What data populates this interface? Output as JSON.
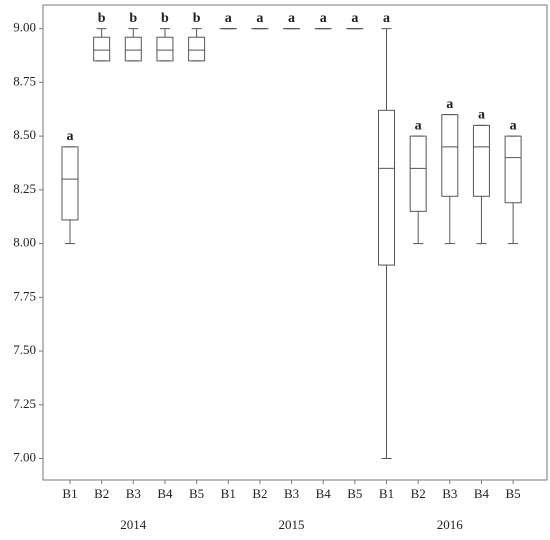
{
  "chart_data": {
    "type": "box",
    "categories": [
      "B1",
      "B2",
      "B3",
      "B4",
      "B5",
      "B1",
      "B2",
      "B3",
      "B4",
      "B5",
      "B1",
      "B2",
      "B3",
      "B4",
      "B5"
    ],
    "groups": [
      "2014",
      "2015",
      "2016"
    ],
    "boxes": [
      {
        "min": 8.0,
        "q1": 8.11,
        "median": 8.3,
        "q3": 8.45,
        "max": 8.45
      },
      {
        "min": 8.85,
        "q1": 8.85,
        "median": 8.9,
        "q3": 8.96,
        "max": 9.0
      },
      {
        "min": 8.85,
        "q1": 8.85,
        "median": 8.9,
        "q3": 8.96,
        "max": 9.0
      },
      {
        "min": 8.85,
        "q1": 8.85,
        "median": 8.9,
        "q3": 8.96,
        "max": 9.0
      },
      {
        "min": 8.85,
        "q1": 8.85,
        "median": 8.9,
        "q3": 8.96,
        "max": 9.0
      },
      {
        "min": 9.0,
        "q1": 9.0,
        "median": 9.0,
        "q3": 9.0,
        "max": 9.0
      },
      {
        "min": 9.0,
        "q1": 9.0,
        "median": 9.0,
        "q3": 9.0,
        "max": 9.0
      },
      {
        "min": 9.0,
        "q1": 9.0,
        "median": 9.0,
        "q3": 9.0,
        "max": 9.0
      },
      {
        "min": 9.0,
        "q1": 9.0,
        "median": 9.0,
        "q3": 9.0,
        "max": 9.0
      },
      {
        "min": 9.0,
        "q1": 9.0,
        "median": 9.0,
        "q3": 9.0,
        "max": 9.0
      },
      {
        "min": 7.0,
        "q1": 7.9,
        "median": 8.35,
        "q3": 8.62,
        "max": 9.0
      },
      {
        "min": 8.0,
        "q1": 8.15,
        "median": 8.35,
        "q3": 8.5,
        "max": 8.5
      },
      {
        "min": 8.0,
        "q1": 8.22,
        "median": 8.45,
        "q3": 8.6,
        "max": 8.6
      },
      {
        "min": 8.0,
        "q1": 8.22,
        "median": 8.45,
        "q3": 8.55,
        "max": 8.55
      },
      {
        "min": 8.0,
        "q1": 8.19,
        "median": 8.4,
        "q3": 8.5,
        "max": 8.5
      }
    ],
    "letters": [
      "a",
      "b",
      "b",
      "b",
      "b",
      "a",
      "a",
      "a",
      "a",
      "a",
      "a",
      "a",
      "a",
      "a",
      "a"
    ],
    "color": "#555555",
    "ylim": [
      6.9,
      9.11
    ],
    "yticks": [
      {
        "value": 7.0,
        "label": "7.00"
      },
      {
        "value": 7.25,
        "label": "7.25"
      },
      {
        "value": 7.5,
        "label": "7.50"
      },
      {
        "value": 7.75,
        "label": "7.75"
      },
      {
        "value": 8.0,
        "label": "8.00"
      },
      {
        "value": 8.25,
        "label": "8.25"
      },
      {
        "value": 8.5,
        "label": "8.50"
      },
      {
        "value": 8.75,
        "label": "8.75"
      },
      {
        "value": 9.0,
        "label": "9.00"
      }
    ]
  }
}
